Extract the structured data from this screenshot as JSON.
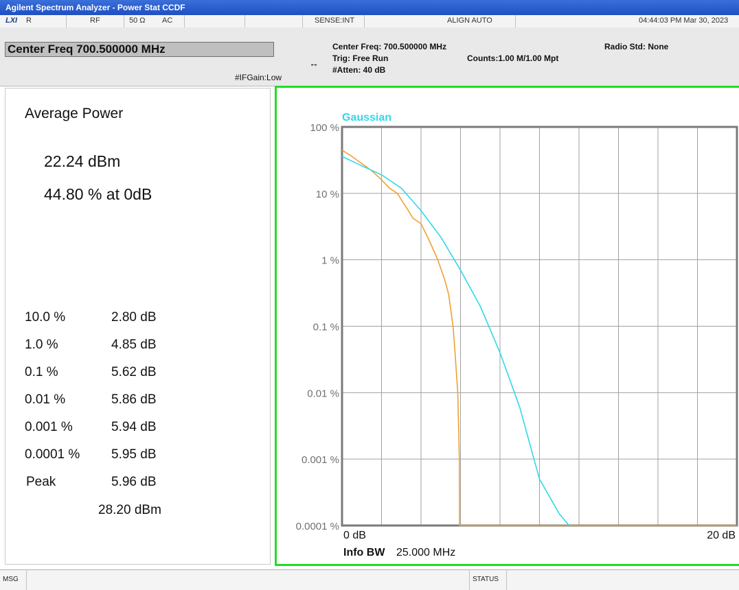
{
  "window": {
    "title": "Agilent Spectrum Analyzer - Power Stat CCDF"
  },
  "statusbar": {
    "lxi": "LXI",
    "r": "R",
    "rf": "RF",
    "impedance": "50 Ω",
    "coupling": "AC",
    "sense": "SENSE:INT",
    "align": "ALIGN AUTO",
    "datetime": "04:44:03 PM Mar 30, 2023"
  },
  "header": {
    "center_freq_box": "Center Freq 700.500000 MHz",
    "ifgain": "#IFGain:Low",
    "center_freq": "Center Freq: 700.500000 MHz",
    "trig": "Trig: Free Run",
    "atten": "#Atten: 40 dB",
    "counts": "Counts:1.00 M/1.00 Mpt",
    "radio_std": "Radio Std: None"
  },
  "left": {
    "avg_label": "Average Power",
    "avg_value": "22.24 dBm",
    "avg_pct": "44.80 % at 0dB",
    "stats": [
      {
        "label": "10.0 %",
        "value": "2.80 dB"
      },
      {
        "label": "1.0 %",
        "value": "4.85 dB"
      },
      {
        "label": "0.1 %",
        "value": "5.62 dB"
      },
      {
        "label": "0.01 %",
        "value": "5.86 dB"
      },
      {
        "label": "0.001 %",
        "value": "5.94 dB"
      },
      {
        "label": "0.0001 %",
        "value": "5.95 dB"
      },
      {
        "label": "Peak",
        "value": "5.96 dB"
      }
    ],
    "peak_dbm": "28.20 dBm"
  },
  "chart_data": {
    "type": "line",
    "legend": "Gaussian",
    "y_ticks": [
      "100 %",
      "10 %",
      "1 %",
      "0.1 %",
      "0.01 %",
      "0.001 %",
      "0.0001 %"
    ],
    "x_start_label": "0 dB",
    "x_end_label": "20 dB",
    "xlim": [
      0,
      20
    ],
    "ylim_percent": [
      0.0001,
      100
    ],
    "y_scale": "log",
    "grid": true,
    "info_bw_label": "Info BW",
    "info_bw_value": "25.000 MHz",
    "series": [
      {
        "color": "#f0a030",
        "x": [
          0,
          0.5,
          1.0,
          1.5,
          2.0,
          2.4,
          2.8,
          3.2,
          3.6,
          4.0,
          4.4,
          4.85,
          5.2,
          5.4,
          5.62,
          5.7,
          5.86,
          5.94,
          5.95,
          5.96,
          20
        ],
        "y": [
          44.8,
          36,
          28,
          22,
          16,
          12,
          10,
          6.5,
          4.2,
          3.5,
          2.0,
          1.0,
          0.5,
          0.3,
          0.1,
          0.05,
          0.01,
          0.001,
          0.0001,
          0.0001,
          0.0001
        ]
      },
      {
        "name": "Gaussian",
        "color": "#30d8e8",
        "x": [
          0,
          1,
          2,
          3,
          4,
          5,
          6,
          7,
          8,
          9,
          10,
          11,
          11.5
        ],
        "y": [
          36,
          26,
          19,
          12,
          5.5,
          2.2,
          0.7,
          0.2,
          0.04,
          0.006,
          0.0005,
          0.00015,
          0.0001
        ]
      }
    ]
  },
  "footer": {
    "msg": "MSG",
    "status": "STATUS"
  }
}
